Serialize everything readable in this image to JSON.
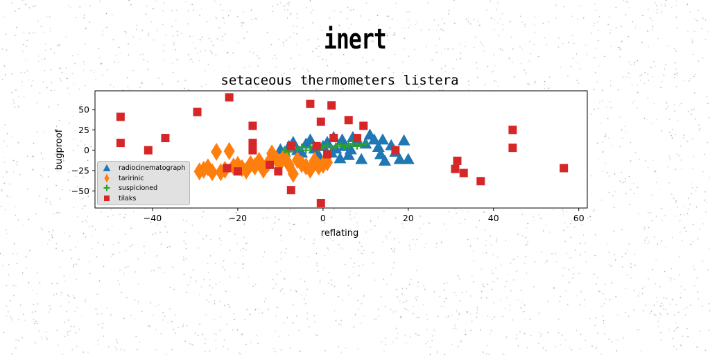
{
  "suptitle": "inert",
  "chart_data": {
    "type": "scatter",
    "title": "setaceous thermometers listera",
    "xlabel": "reflating",
    "ylabel": "bugproof",
    "xlim": [
      -53.5,
      62
    ],
    "ylim": [
      -71,
      73
    ],
    "xticks": [
      -40,
      -20,
      0,
      20,
      40,
      60
    ],
    "yticks": [
      -50,
      -25,
      0,
      25,
      50
    ],
    "grid": false,
    "legend_position": "lower-left",
    "series": [
      {
        "name": "radiocinematograph",
        "marker": "triangle",
        "color": "#1f77b4",
        "points": [
          [
            -10,
            1
          ],
          [
            -9,
            -2
          ],
          [
            -8,
            5
          ],
          [
            -7,
            10
          ],
          [
            -6,
            0
          ],
          [
            -5,
            -3
          ],
          [
            -4,
            8
          ],
          [
            -3,
            13
          ],
          [
            -2,
            2
          ],
          [
            -1,
            -6
          ],
          [
            0,
            5
          ],
          [
            1,
            10
          ],
          [
            2,
            -3
          ],
          [
            2.5,
            16
          ],
          [
            3,
            2
          ],
          [
            4,
            -10
          ],
          [
            4.5,
            13
          ],
          [
            5,
            5
          ],
          [
            6,
            -6
          ],
          [
            6.5,
            1
          ],
          [
            7,
            16
          ],
          [
            8,
            10
          ],
          [
            9,
            -11
          ],
          [
            10,
            8
          ],
          [
            11,
            19
          ],
          [
            12,
            13
          ],
          [
            13,
            4
          ],
          [
            13.5,
            -5
          ],
          [
            14,
            13
          ],
          [
            14.5,
            -13
          ],
          [
            16,
            6
          ],
          [
            17,
            -2
          ],
          [
            18,
            -11
          ],
          [
            19,
            12
          ],
          [
            20,
            -11
          ]
        ]
      },
      {
        "name": "taririnic",
        "marker": "thin_diamond",
        "color": "#ff7f0e",
        "points": [
          [
            -29,
            -26
          ],
          [
            -28,
            -24
          ],
          [
            -27,
            -21
          ],
          [
            -26,
            -27
          ],
          [
            -25,
            -2
          ],
          [
            -24,
            -27
          ],
          [
            -23,
            -24
          ],
          [
            -22,
            -1
          ],
          [
            -21,
            -20
          ],
          [
            -20,
            -18
          ],
          [
            -19,
            -22
          ],
          [
            -18,
            -25
          ],
          [
            -17,
            -17
          ],
          [
            -16,
            -20
          ],
          [
            -15,
            -13
          ],
          [
            -14,
            -24
          ],
          [
            -13,
            -17
          ],
          [
            -12,
            -4
          ],
          [
            -11,
            -11
          ],
          [
            -10,
            -15
          ],
          [
            -9,
            -7
          ],
          [
            -8,
            -18
          ],
          [
            -7,
            -29
          ],
          [
            -6,
            -12
          ],
          [
            -5,
            -17
          ],
          [
            -4,
            -20
          ],
          [
            -3,
            -24
          ],
          [
            -2,
            -13
          ],
          [
            -1,
            -20
          ],
          [
            0,
            -18
          ],
          [
            1,
            -15
          ]
        ]
      },
      {
        "name": "suspicioned",
        "marker": "plus",
        "color": "#2ca02c",
        "points": [
          [
            -9,
            0
          ],
          [
            -8,
            -2
          ],
          [
            -7,
            2
          ],
          [
            -6,
            1
          ],
          [
            -5,
            4
          ],
          [
            -4,
            0
          ],
          [
            -3,
            3
          ],
          [
            -2,
            5
          ],
          [
            -1,
            2
          ],
          [
            0,
            4
          ],
          [
            1,
            6
          ],
          [
            2,
            3
          ],
          [
            3,
            5
          ],
          [
            4,
            7
          ],
          [
            5,
            4
          ],
          [
            6,
            6
          ],
          [
            7,
            8
          ],
          [
            8,
            5
          ],
          [
            9,
            7
          ],
          [
            10,
            8
          ]
        ]
      },
      {
        "name": "tilaks",
        "marker": "square",
        "color": "#d62728",
        "points": [
          [
            -47.5,
            41
          ],
          [
            -47.5,
            9
          ],
          [
            -41,
            0
          ],
          [
            -37,
            15
          ],
          [
            -29.5,
            47
          ],
          [
            -22,
            65
          ],
          [
            -22.5,
            -22
          ],
          [
            -20,
            -26
          ],
          [
            -16.5,
            30
          ],
          [
            -16.5,
            9
          ],
          [
            -16.5,
            0
          ],
          [
            -12.5,
            -18
          ],
          [
            -10.5,
            -26
          ],
          [
            -7.5,
            5
          ],
          [
            -7.5,
            -49
          ],
          [
            -3,
            57
          ],
          [
            -1.5,
            5
          ],
          [
            -0.5,
            35
          ],
          [
            -0.5,
            -65
          ],
          [
            1,
            -5
          ],
          [
            2,
            55
          ],
          [
            2.5,
            15
          ],
          [
            6,
            37
          ],
          [
            8,
            15
          ],
          [
            9.5,
            30
          ],
          [
            17,
            0
          ],
          [
            31,
            -23
          ],
          [
            31.5,
            -13
          ],
          [
            33,
            -28
          ],
          [
            37,
            -38
          ],
          [
            44.5,
            25
          ],
          [
            44.5,
            3
          ],
          [
            56.5,
            -22
          ]
        ]
      }
    ]
  }
}
